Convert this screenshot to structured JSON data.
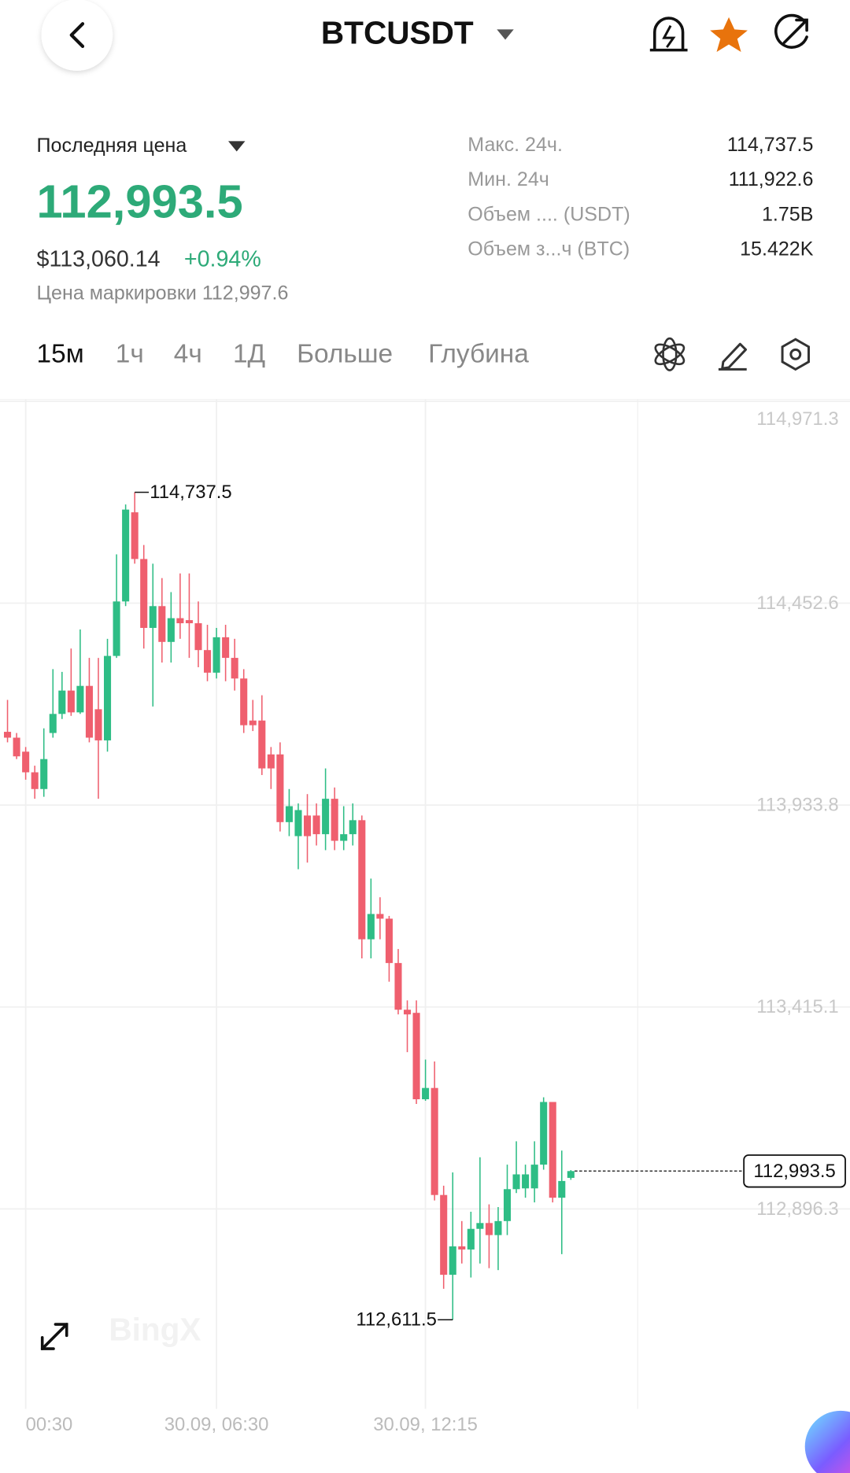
{
  "header": {
    "title": "BTCUSDT"
  },
  "price_panel": {
    "label": "Последняя цена",
    "last_price": "112,993.5",
    "usd_price": "$113,060.14",
    "change": "+0.94%",
    "mark_price": "Цена маркировки 112,997.6"
  },
  "stats": [
    {
      "label": "Макс. 24ч.",
      "value": "114,737.5"
    },
    {
      "label": "Мин. 24ч",
      "value": "111,922.6"
    },
    {
      "label": "Объем .... (USDT)",
      "value": "1.75B"
    },
    {
      "label": "Объем з...ч (BTC)",
      "value": "15.422K"
    }
  ],
  "tabs": [
    "15м",
    "1ч",
    "4ч",
    "1Д",
    "Больше",
    "Глубина"
  ],
  "chart_data": {
    "type": "candlestick",
    "watermark": "BingX",
    "categories": [
      null,
      null,
      "00:30",
      null,
      null,
      null,
      null,
      null,
      null,
      null,
      null,
      null,
      null,
      null,
      null,
      null,
      null,
      null,
      null,
      null,
      null,
      null,
      null,
      "30.09, 06:30",
      null,
      null,
      null,
      null,
      null,
      null,
      null,
      null,
      null,
      null,
      null,
      null,
      null,
      null,
      null,
      null,
      null,
      null,
      null,
      null,
      null,
      null,
      "30.09, 12:15",
      null,
      null,
      null,
      null,
      null,
      null,
      null,
      null,
      null,
      null,
      null,
      null,
      null,
      null,
      null,
      null
    ],
    "series": {
      "open": [
        114122,
        114107,
        114071,
        114018,
        113975,
        114119,
        114168,
        114228,
        114172,
        114240,
        114180,
        114100,
        114317,
        114457,
        114686,
        114566,
        114389,
        114445,
        114353,
        114414,
        114409,
        114401,
        114332,
        114274,
        114365,
        114312,
        114259,
        114151,
        114151,
        114064,
        114064,
        113890,
        113854,
        113907,
        113907,
        113859,
        113950,
        113842,
        113859,
        113895,
        113589,
        113654,
        113642,
        113528,
        113408,
        113400,
        113178,
        113207,
        112932,
        112727,
        112800,
        112792,
        112845,
        112860,
        112829,
        112865,
        112947,
        112949,
        112949,
        113010,
        113171,
        112925,
        112976
      ],
      "high": [
        114204,
        114119,
        114083,
        114035,
        114131,
        114283,
        114276,
        114336,
        114385,
        114312,
        114312,
        114361,
        114578,
        114706,
        114737.5,
        114602,
        114554,
        114517,
        114481,
        114529,
        114529,
        114457,
        114397,
        114389,
        114397,
        114361,
        114283,
        114204,
        114216,
        114083,
        114095,
        113975,
        113938,
        113962,
        113938,
        114028,
        113979,
        113931,
        113938,
        113907,
        113745,
        113697,
        113649,
        113564,
        113432,
        113432,
        113280,
        113275,
        112956,
        112990,
        112865,
        112889,
        113029,
        112908,
        112901,
        113010,
        113070,
        113010,
        113070,
        113183,
        113171,
        113046,
        112996
      ],
      "low": [
        114095,
        114052,
        113999,
        113950,
        113955,
        114107,
        114155,
        114163,
        114168,
        114095,
        113950,
        114071,
        114312,
        114445,
        114554,
        114336,
        114187,
        114300,
        114300,
        114361,
        114312,
        114288,
        114252,
        114259,
        114252,
        114228,
        114119,
        114124,
        114011,
        113975,
        113866,
        113854,
        113769,
        113786,
        113830,
        113818,
        113818,
        113818,
        113830,
        113540,
        113540,
        113589,
        113480,
        113396,
        113299,
        113166,
        113174,
        112918,
        112691,
        112611.5,
        112756,
        112720,
        112756,
        112744,
        112739,
        112829,
        112937,
        112925,
        112913,
        112997,
        112913,
        112780,
        112971
      ],
      "close": [
        114107,
        114059,
        114018,
        113975,
        114052,
        114168,
        114228,
        114172,
        114240,
        114107,
        114100,
        114317,
        114457,
        114693,
        114566,
        114389,
        114445,
        114353,
        114414,
        114401,
        114401,
        114332,
        114274,
        114365,
        114312,
        114259,
        114139,
        114139,
        114028,
        114028,
        113890,
        113931,
        113921,
        113854,
        113859,
        113950,
        113842,
        113859,
        113895,
        113589,
        113654,
        113642,
        113528,
        113408,
        113396,
        113178,
        113207,
        112932,
        112727,
        112800,
        112792,
        112845,
        112860,
        112829,
        112865,
        112947,
        112985,
        112985,
        113010,
        113171,
        112925,
        112968,
        112993.5
      ]
    },
    "up_color": "#2ebd85",
    "down_color": "#ef5f6e",
    "ylim": [
      112382.6,
      114976.1
    ],
    "yticks": [
      {
        "value": 114971.3,
        "label": "114,971.3"
      },
      {
        "value": 114452.6,
        "label": "114,452.6"
      },
      {
        "value": 113933.8,
        "label": "113,933.8"
      },
      {
        "value": 113415.1,
        "label": "113,415.1"
      },
      {
        "value": 112896.3,
        "label": "112,896.3"
      }
    ],
    "grid": true,
    "high_label": "114,737.5",
    "low_label": "112,611.5",
    "last_price": 112993.5,
    "last_price_label": "112,993.5"
  }
}
